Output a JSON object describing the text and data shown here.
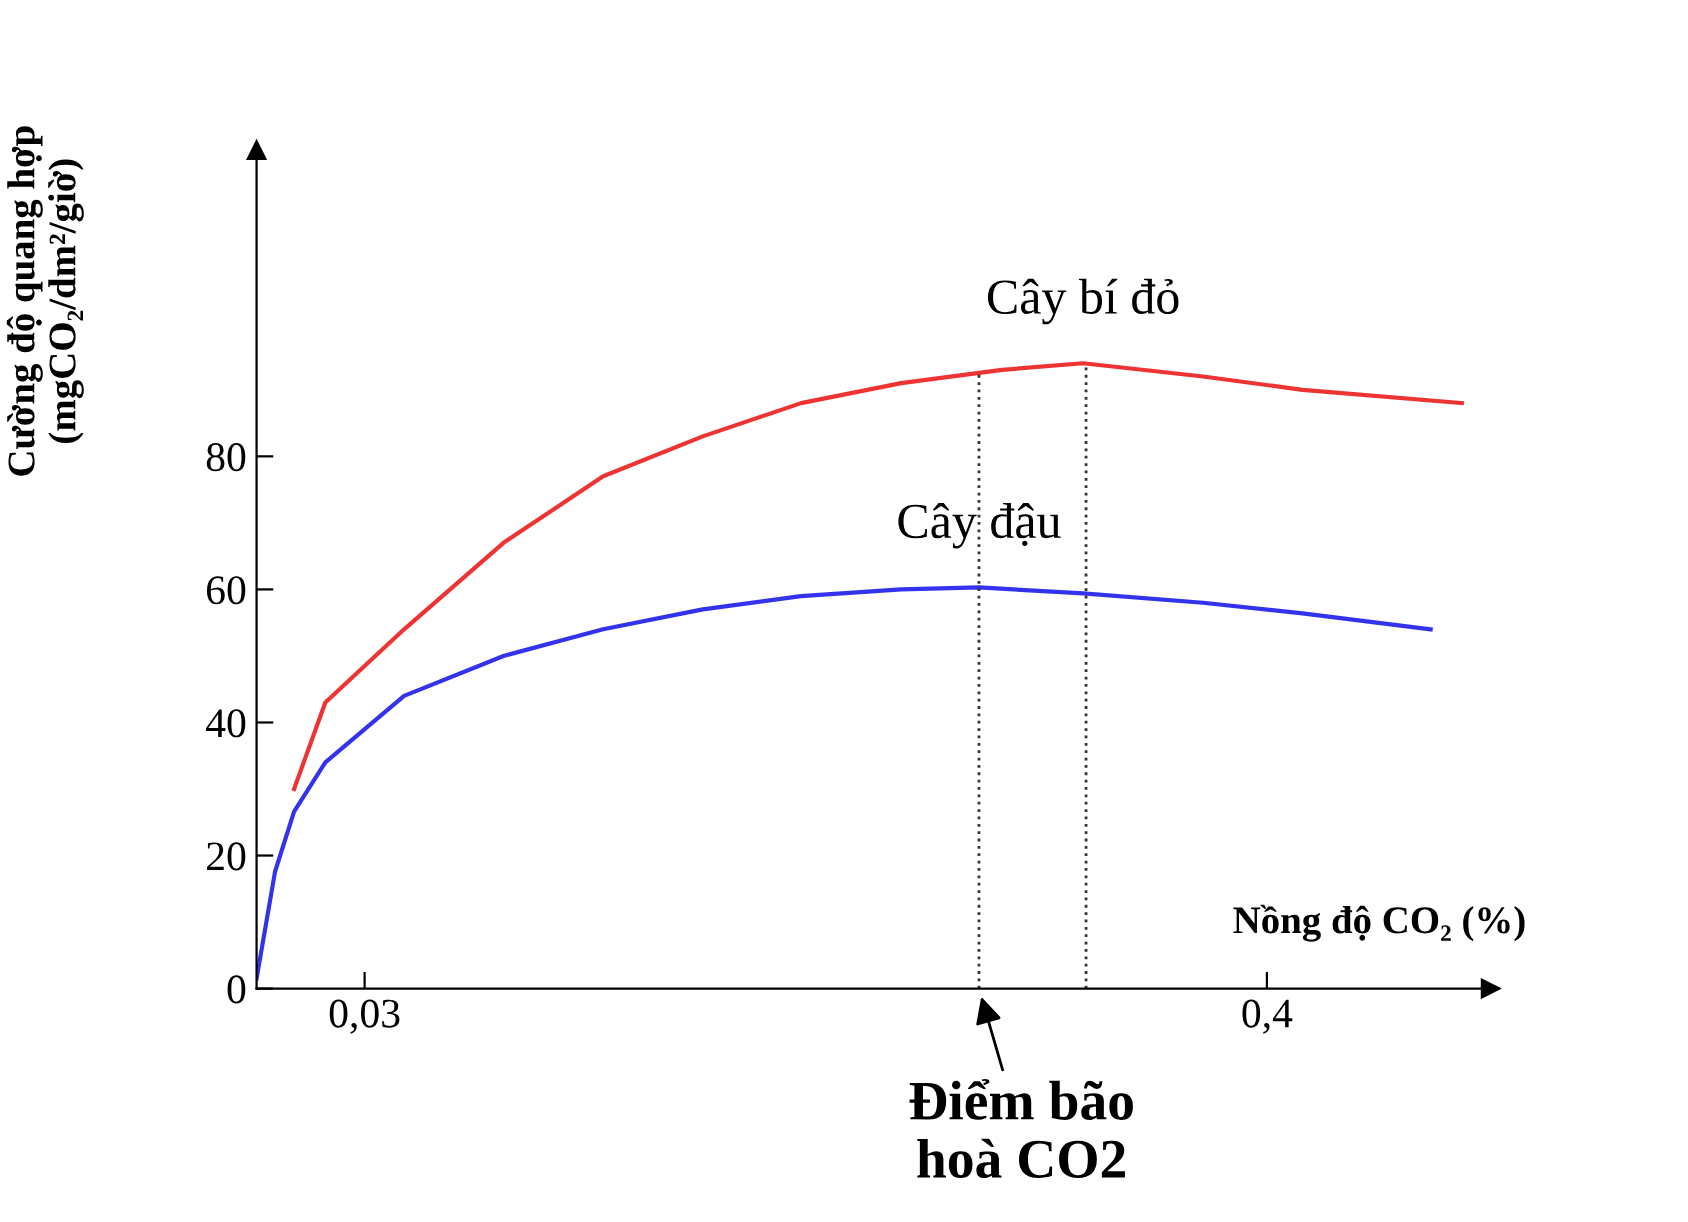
{
  "chart_data": {
    "type": "line",
    "xlabel": "Nồng độ CO₂ (%)",
    "ylabel": "Cường độ quang hợp\n(mgCO₂/dm²/giờ)",
    "log": "x",
    "xlim": [
      0.022,
      0.76
    ],
    "xticks": [
      {
        "value": 0.03,
        "label": "0,03"
      },
      {
        "value": 0.4,
        "label": "0,4"
      }
    ],
    "ylim": [
      0,
      126
    ],
    "yticks": [
      0,
      20,
      40,
      60,
      80
    ],
    "grid": false,
    "marker": "none",
    "line_style": "solid",
    "series": [
      {
        "name": "Cây bí đỏ",
        "color": "#ee3333",
        "x": [
          0.0245,
          0.0268,
          0.0336,
          0.0447,
          0.0595,
          0.0792,
          0.105,
          0.14,
          0.187,
          0.236,
          0.333,
          0.443,
          0.7
        ],
        "values": [
          30,
          43,
          54,
          67,
          77,
          83,
          88,
          91,
          93,
          94,
          92,
          90,
          88
        ]
      },
      {
        "name": "Cây đậu",
        "color": "#3333ee",
        "x": [
          0.022,
          0.0232,
          0.0245,
          0.0268,
          0.0336,
          0.0447,
          0.0595,
          0.0792,
          0.105,
          0.14,
          0.175,
          0.236,
          0.333,
          0.443,
          0.64
        ],
        "values": [
          1.5,
          17.6,
          26.6,
          34,
          44,
          50,
          54,
          57,
          59,
          60,
          60.3,
          59.4,
          58,
          56.4,
          54
        ]
      }
    ],
    "ref_lines": [
      {
        "axis": "x",
        "value": 0.175,
        "line_style": "dotted",
        "color": "#333333"
      },
      {
        "axis": "x",
        "value": 0.238,
        "line_style": "dotted",
        "color": "#333333"
      }
    ],
    "annotations": [
      {
        "text": "Điểm bão\nhoà CO2",
        "x": 0.175,
        "y": 0
      }
    ]
  }
}
